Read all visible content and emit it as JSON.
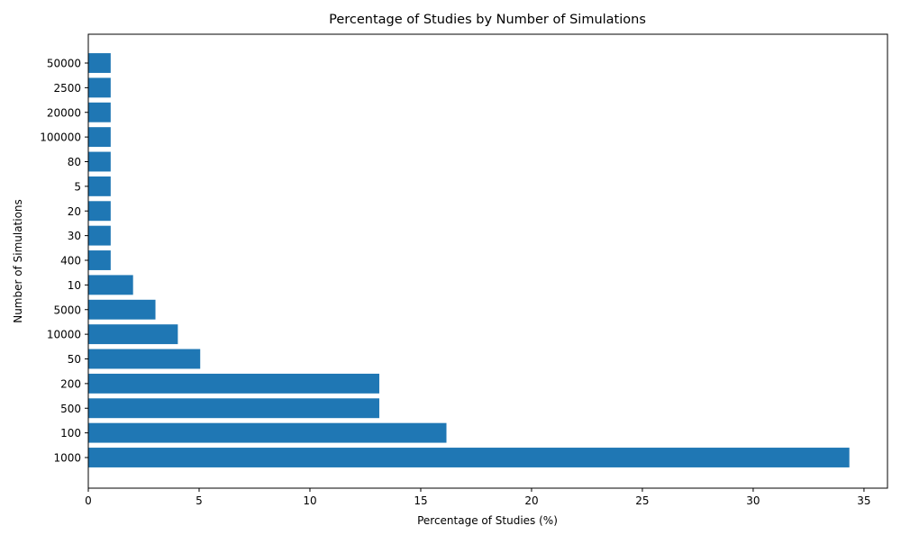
{
  "chart_data": {
    "type": "bar",
    "orientation": "horizontal",
    "title": "Percentage of Studies by Number of Simulations",
    "xlabel": "Percentage of Studies (%)",
    "ylabel": "Number of Simulations",
    "categories": [
      "1000",
      "100",
      "500",
      "200",
      "50",
      "10000",
      "5000",
      "10",
      "400",
      "30",
      "20",
      "5",
      "80",
      "100000",
      "20000",
      "2500",
      "50000"
    ],
    "values": [
      34.34,
      16.16,
      13.13,
      13.13,
      5.05,
      4.04,
      3.03,
      2.02,
      1.01,
      1.01,
      1.01,
      1.01,
      1.01,
      1.01,
      1.01,
      1.01,
      1.01
    ],
    "xlim": [
      0,
      36.06
    ],
    "xticks": [
      0,
      5,
      10,
      15,
      20,
      25,
      30,
      35
    ],
    "grid": false,
    "legend": "none",
    "bar_color": "#1f77b4"
  }
}
